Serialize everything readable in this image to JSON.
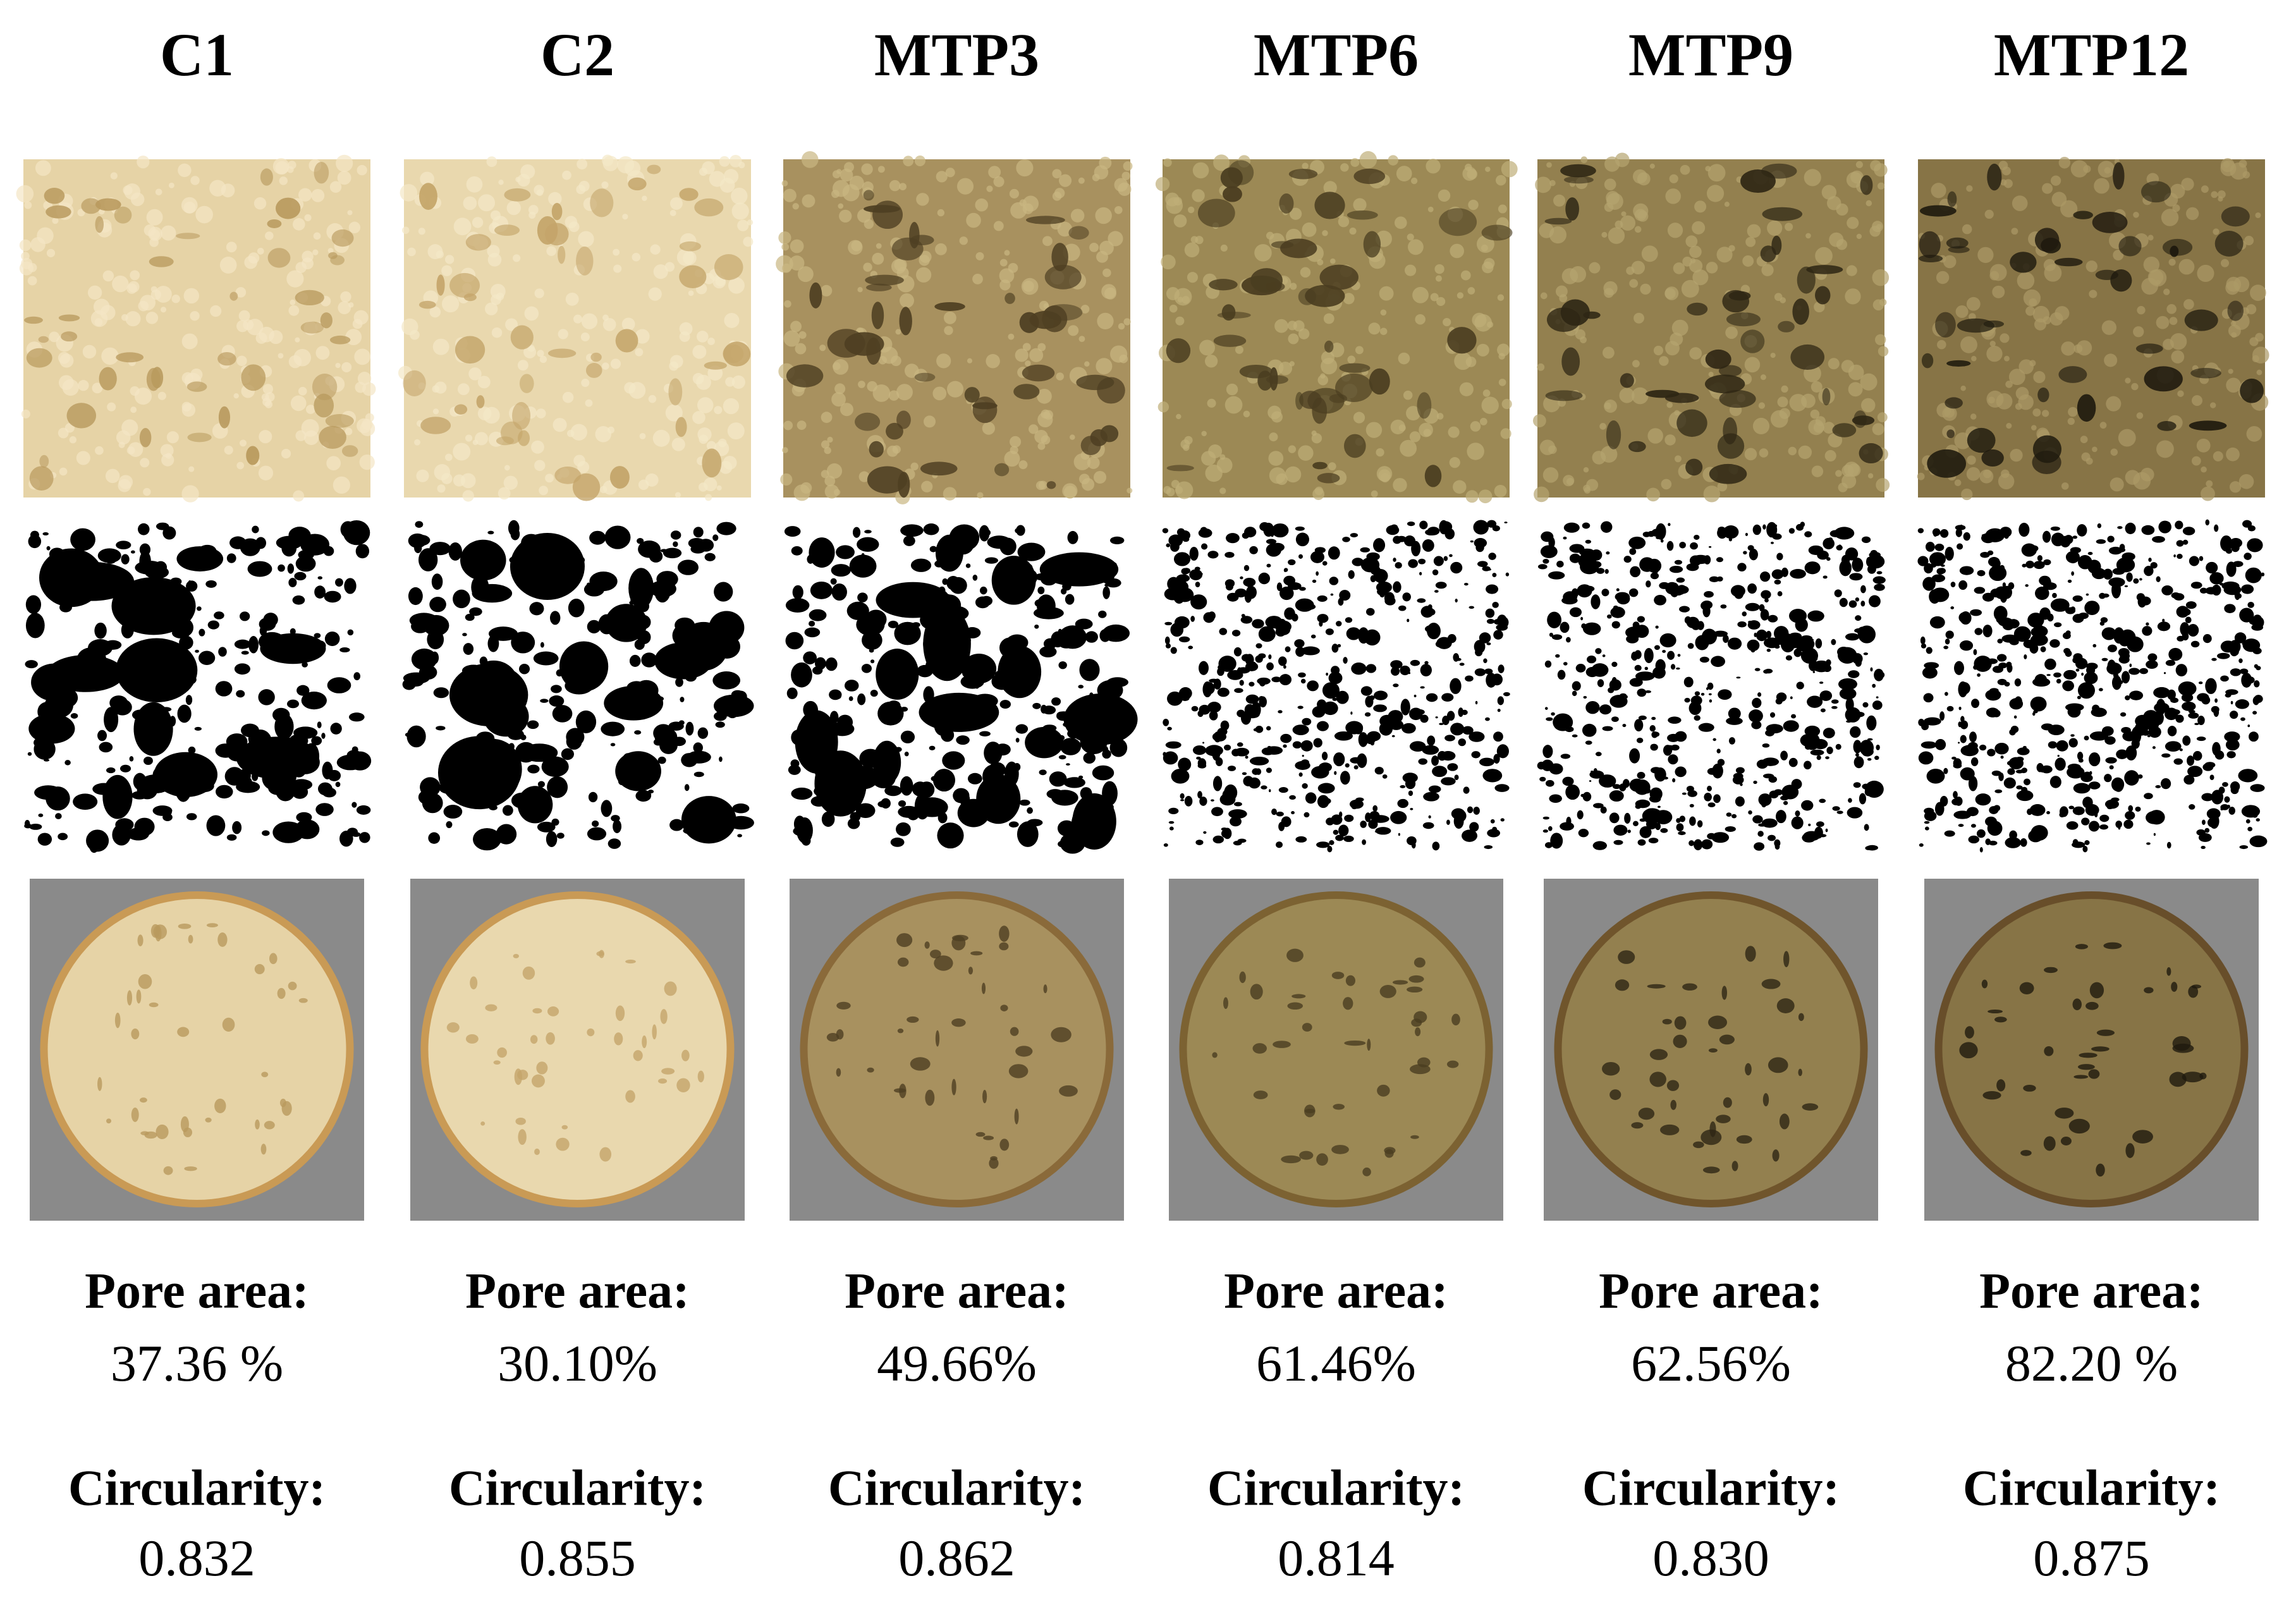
{
  "columns": [
    {
      "title": "C1",
      "pore_area_label": "Pore area:",
      "pore_area": "37.36 %",
      "circularity_label": "Circularity:",
      "circularity": "0.832"
    },
    {
      "title": "C2",
      "pore_area_label": "Pore area:",
      "pore_area": "30.10%",
      "circularity_label": "Circularity:",
      "circularity": "0.855"
    },
    {
      "title": "MTP3",
      "pore_area_label": "Pore area:",
      "pore_area": "49.66%",
      "circularity_label": "Circularity:",
      "circularity": "0.862"
    },
    {
      "title": "MTP6",
      "pore_area_label": "Pore area:",
      "pore_area": "61.46%",
      "circularity_label": "Circularity:",
      "circularity": "0.814"
    },
    {
      "title": "MTP9",
      "pore_area_label": "Pore area:",
      "pore_area": "62.56%",
      "circularity_label": "Circularity:",
      "circularity": "0.830"
    },
    {
      "title": "MTP12",
      "pore_area_label": "Pore area:",
      "pore_area": "82.20 %",
      "circularity_label": "Circularity:",
      "circularity": "0.875"
    }
  ]
}
